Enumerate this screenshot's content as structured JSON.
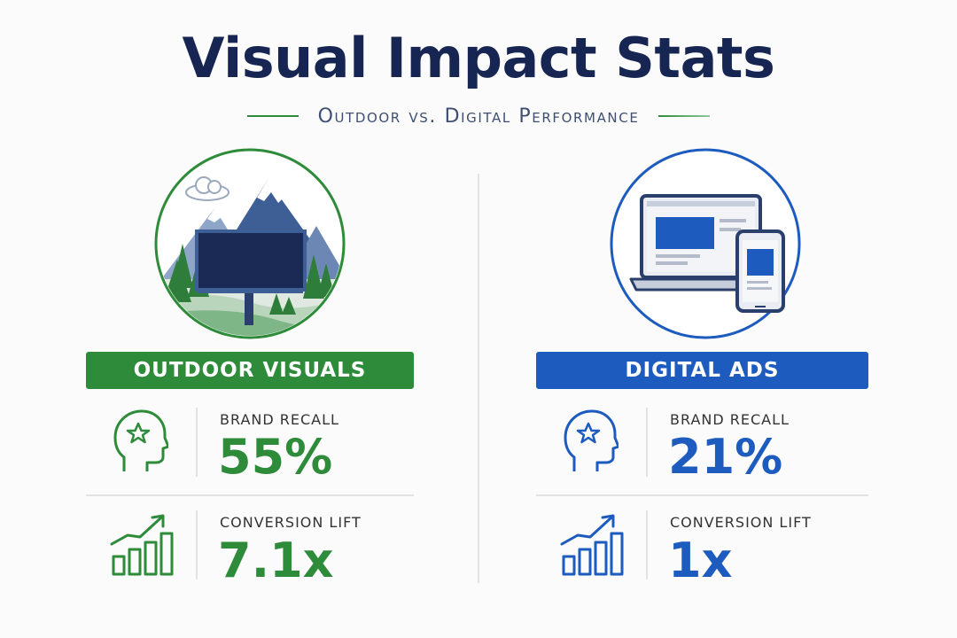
{
  "header": {
    "title": "Visual Impact Stats",
    "subtitle": "Outdoor vs. Digital Performance"
  },
  "colors": {
    "green": "#2e8b3a",
    "blue": "#1d5bbf",
    "navy": "#162551"
  },
  "outdoor": {
    "banner": "OUTDOOR VISUALS",
    "illustration_icon": "billboard-mountain-icon",
    "stats": [
      {
        "icon": "head-star-icon",
        "label": "BRAND RECALL",
        "value": "55%"
      },
      {
        "icon": "growth-chart-icon",
        "label": "CONVERSION LIFT",
        "value": "7.1x"
      }
    ]
  },
  "digital": {
    "banner": "DIGITAL ADS",
    "illustration_icon": "laptop-phone-icon",
    "stats": [
      {
        "icon": "head-star-icon",
        "label": "BRAND RECALL",
        "value": "21%"
      },
      {
        "icon": "growth-chart-icon",
        "label": "CONVERSION LIFT",
        "value": "1x"
      }
    ]
  }
}
